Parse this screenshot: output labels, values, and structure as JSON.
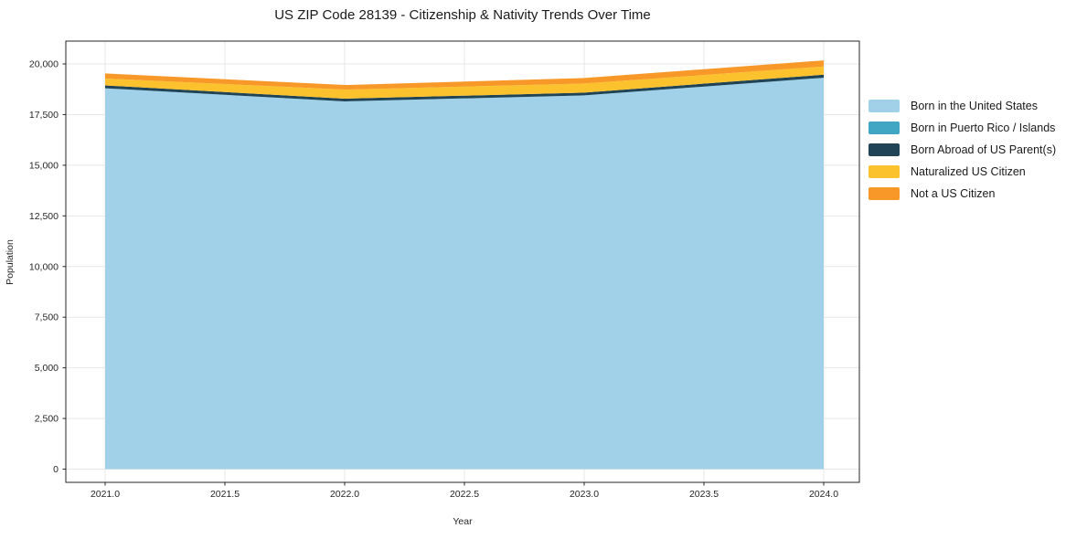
{
  "chart_data": {
    "type": "area",
    "stacked": true,
    "title": "US ZIP Code 28139 - Citizenship & Nativity Trends Over Time",
    "xlabel": "Year",
    "ylabel": "Population",
    "x": [
      2021,
      2022,
      2023,
      2024
    ],
    "series": [
      {
        "name": "Born in the United States",
        "color": "#a1d1e8",
        "values": [
          18800,
          18150,
          18450,
          19320
        ]
      },
      {
        "name": "Born in Puerto Rico / Islands",
        "color": "#41a6c4",
        "values": [
          0,
          0,
          0,
          0
        ]
      },
      {
        "name": "Born Abroad of US Parent(s)",
        "color": "#204455",
        "values": [
          140,
          135,
          135,
          150
        ]
      },
      {
        "name": "Naturalized US Citizen",
        "color": "#fcc22d",
        "values": [
          340,
          450,
          450,
          405
        ]
      },
      {
        "name": "Not a US Citizen",
        "color": "#f79829",
        "values": [
          250,
          225,
          270,
          300
        ]
      }
    ],
    "xticks": [
      2021.0,
      2021.5,
      2022.0,
      2022.5,
      2023.0,
      2023.5,
      2024.0
    ],
    "yticks": [
      0,
      2500,
      5000,
      7500,
      10000,
      12500,
      15000,
      17500,
      20000
    ],
    "xlim": [
      2021,
      2024
    ],
    "ylim": [
      0,
      20000
    ],
    "grid": true,
    "legend_position": "right"
  }
}
